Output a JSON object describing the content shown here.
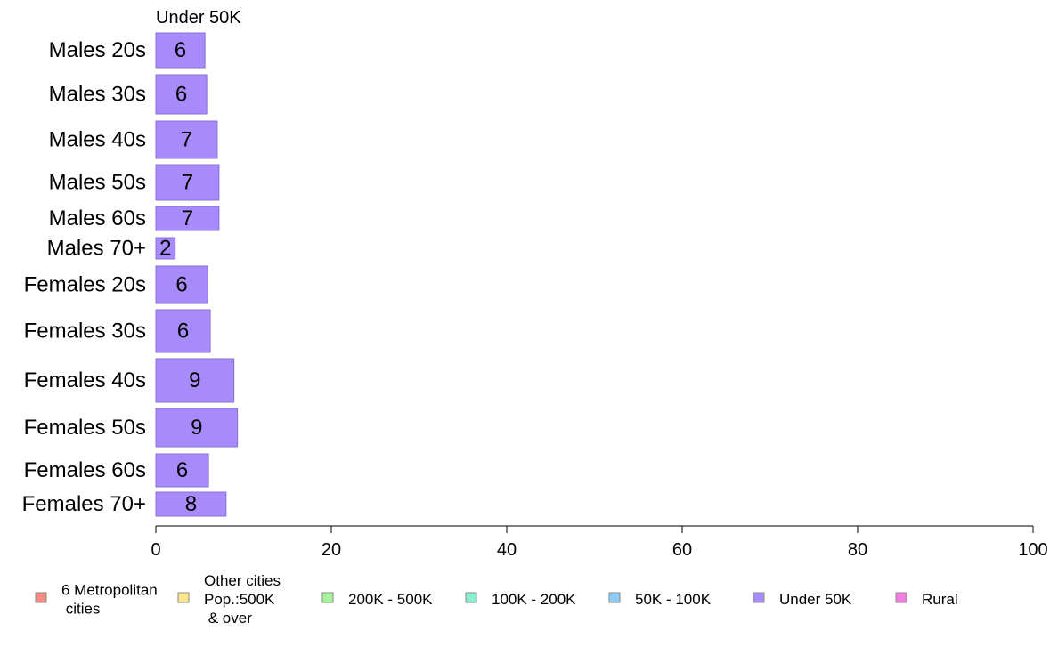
{
  "chart_data": {
    "type": "bar",
    "orientation": "horizontal",
    "panel_title": "Under 50K",
    "series_color": "#a78bfa",
    "bar_border_color": "#8b6fd6",
    "categories": [
      "Males 20s",
      "Males 30s",
      "Males 40s",
      "Males 50s",
      "Males 60s",
      "Males 70+",
      "Females 20s",
      "Females 30s",
      "Females 40s",
      "Females 50s",
      "Females 60s",
      "Females 70+"
    ],
    "values": [
      5.6,
      5.8,
      7.0,
      7.2,
      7.2,
      2.2,
      5.9,
      6.2,
      8.9,
      9.3,
      6.0,
      8.0
    ],
    "value_labels": [
      "6",
      "6",
      "7",
      "7",
      "7",
      "2",
      "6",
      "6",
      "9",
      "9",
      "6",
      "8"
    ],
    "xlim": [
      0,
      100
    ],
    "xticks": [
      "0",
      "20",
      "40",
      "60",
      "80",
      "100"
    ],
    "grid": false,
    "legend": {
      "position": "bottom",
      "items": [
        {
          "label": "6 Metropolitan\n cities",
          "color": "#f28b82"
        },
        {
          "label": "Other cities\nPop.:500K\n & over",
          "color": "#fde68a"
        },
        {
          "label": "200K - 500K",
          "color": "#a3f59a"
        },
        {
          "label": "100K - 200K",
          "color": "#86efcf"
        },
        {
          "label": "50K - 100K",
          "color": "#8ecdf5"
        },
        {
          "label": "Under 50K",
          "color": "#a78bfa"
        },
        {
          "label": "Rural",
          "color": "#f47ee0"
        }
      ]
    }
  }
}
